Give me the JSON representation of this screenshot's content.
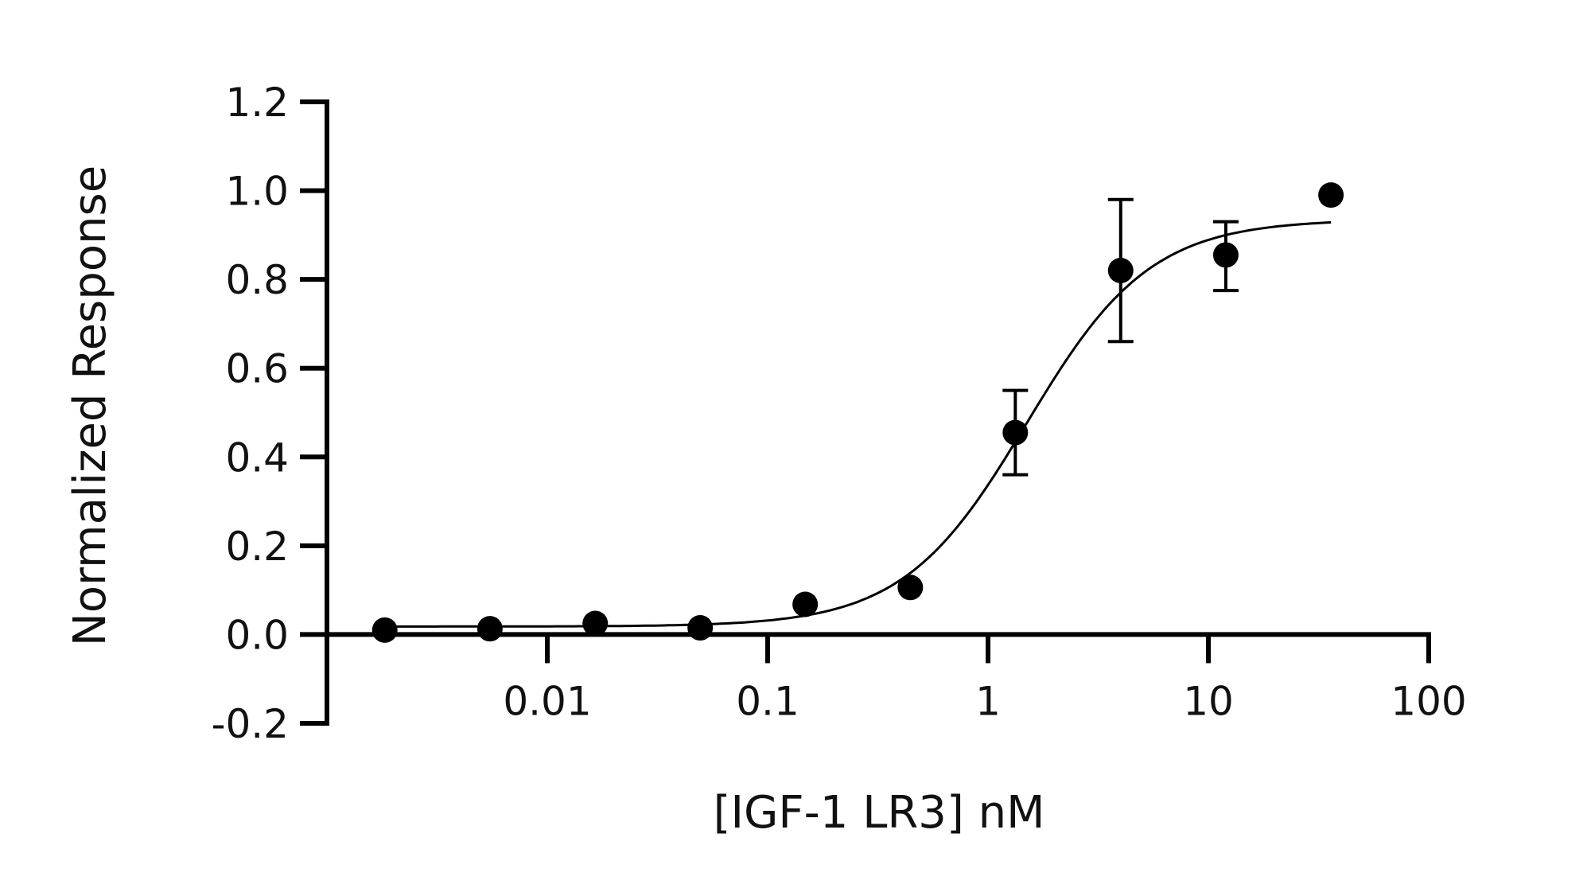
{
  "chart_data": {
    "type": "scatter",
    "title": "",
    "xlabel": "[IGF-1 LR3] nM",
    "ylabel": "Normalized Response",
    "x_scale": "log",
    "xlim": [
      0.001,
      100
    ],
    "ylim": [
      -0.2,
      1.2
    ],
    "x_ticks": [
      0.01,
      0.1,
      1,
      10,
      100
    ],
    "x_tick_labels": [
      "0.01",
      "0.1",
      "1",
      "10",
      "100"
    ],
    "y_ticks": [
      -0.2,
      0.0,
      0.2,
      0.4,
      0.6,
      0.8,
      1.0,
      1.2
    ],
    "y_tick_labels": [
      "-0.2",
      "0.0",
      "0.2",
      "0.4",
      "0.6",
      "0.8",
      "1.0",
      "1.2"
    ],
    "grid": false,
    "series": [
      {
        "points": [
          {
            "x": 0.00183,
            "y": 0.01
          },
          {
            "x": 0.00549,
            "y": 0.013
          },
          {
            "x": 0.0165,
            "y": 0.025
          },
          {
            "x": 0.0494,
            "y": 0.015
          },
          {
            "x": 0.148,
            "y": 0.068
          },
          {
            "x": 0.444,
            "y": 0.106
          },
          {
            "x": 1.33,
            "y": 0.455,
            "err_low": 0.36,
            "err_high": 0.55
          },
          {
            "x": 4.0,
            "y": 0.82,
            "err_low": 0.66,
            "err_high": 0.98
          },
          {
            "x": 12.0,
            "y": 0.855,
            "err_low": 0.775,
            "err_high": 0.93
          },
          {
            "x": 36.0,
            "y": 0.99
          }
        ],
        "fit": {
          "model": "4PL",
          "bottom": 0.018,
          "top": 0.935,
          "ec50": 1.5,
          "hill": 1.55
        }
      }
    ],
    "colors": {
      "points": "#000000",
      "axes": "#000000",
      "curve": "#000000"
    }
  }
}
